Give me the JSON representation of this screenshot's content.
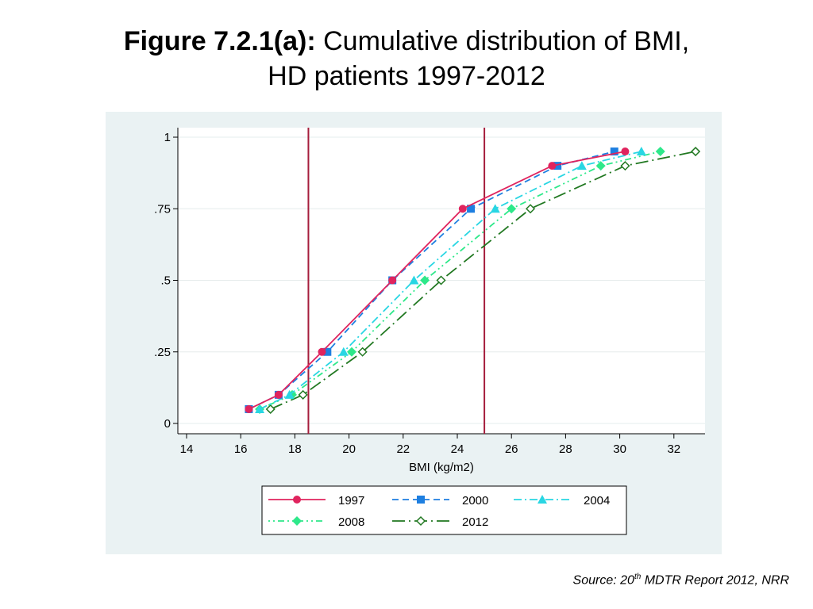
{
  "title": {
    "bold_part": "Figure 7.2.1(a):",
    "rest_line1": "Cumulative distribution of BMI,",
    "line2": "HD patients 1997-2012"
  },
  "source": {
    "prefix": "Source: 20",
    "sup": "th",
    "suffix": " MDTR Report 2012, NRR"
  },
  "chart_data": {
    "type": "line",
    "title": "Cumulative distribution of BMI, HD patients 1997-2012",
    "xlabel": "BMI (kg/m2)",
    "ylabel": "",
    "xlim": [
      14,
      33
    ],
    "ylim": [
      0,
      1
    ],
    "xticks": [
      14,
      16,
      18,
      20,
      22,
      24,
      26,
      28,
      30,
      32
    ],
    "yticks": [
      0,
      0.25,
      0.5,
      0.75,
      1
    ],
    "ytick_labels": [
      "0",
      ".25",
      ".5",
      ".75",
      "1"
    ],
    "reference_lines_x": [
      18.5,
      25
    ],
    "reference_line_color": "#a51d3c",
    "legend_position": "bottom",
    "series": [
      {
        "name": "1997",
        "color": "#e0245e",
        "dash": "solid",
        "marker": "circle",
        "x": [
          16.3,
          17.4,
          19.0,
          21.6,
          24.2,
          27.5,
          30.2
        ],
        "y": [
          0.05,
          0.1,
          0.25,
          0.5,
          0.75,
          0.9,
          0.95
        ]
      },
      {
        "name": "2000",
        "color": "#1e7fe0",
        "dash": "dashed",
        "marker": "square",
        "x": [
          16.3,
          17.4,
          19.2,
          21.6,
          24.5,
          27.7,
          29.8
        ],
        "y": [
          0.05,
          0.1,
          0.25,
          0.5,
          0.75,
          0.9,
          0.95
        ]
      },
      {
        "name": "2004",
        "color": "#29d6e3",
        "dash": "dashdot",
        "marker": "triangle",
        "x": [
          16.7,
          17.8,
          19.8,
          22.4,
          25.4,
          28.6,
          30.8
        ],
        "y": [
          0.05,
          0.1,
          0.25,
          0.5,
          0.75,
          0.9,
          0.95
        ]
      },
      {
        "name": "2008",
        "color": "#2ee88a",
        "dash": "dotdash",
        "marker": "diamond",
        "x": [
          16.7,
          17.9,
          20.1,
          22.8,
          26.0,
          29.3,
          31.5
        ],
        "y": [
          0.05,
          0.1,
          0.25,
          0.5,
          0.75,
          0.9,
          0.95
        ]
      },
      {
        "name": "2012",
        "color": "#217821",
        "dash": "longdash",
        "marker": "diamond-hollow",
        "x": [
          17.1,
          18.3,
          20.5,
          23.4,
          26.7,
          30.2,
          32.8
        ],
        "y": [
          0.05,
          0.1,
          0.25,
          0.5,
          0.75,
          0.9,
          0.95
        ]
      }
    ]
  }
}
